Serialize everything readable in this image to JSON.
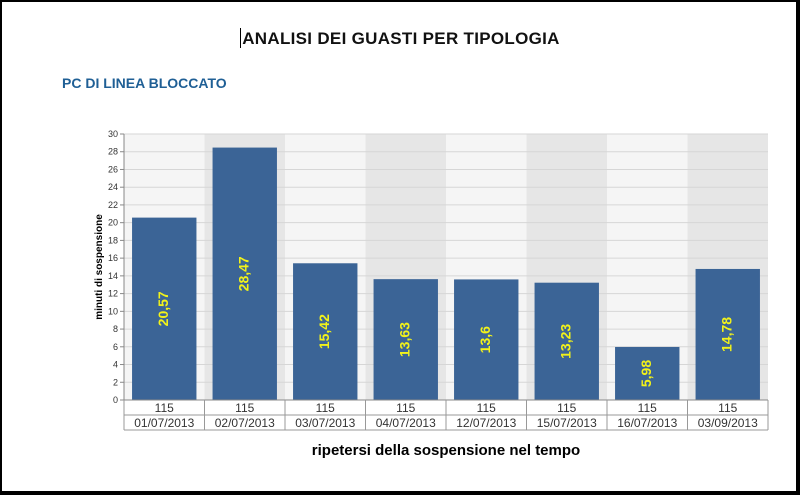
{
  "report": {
    "title": "ANALISI DEI GUASTI PER TIPOLOGIA"
  },
  "section": {
    "title": "PC DI LINEA BLOCCATO"
  },
  "chart_data": {
    "type": "bar",
    "categories": [
      "01/07/2013",
      "02/07/2013",
      "03/07/2013",
      "04/07/2013",
      "12/07/2013",
      "15/07/2013",
      "16/07/2013",
      "03/09/2013"
    ],
    "category_codes": [
      "115",
      "115",
      "115",
      "115",
      "115",
      "115",
      "115",
      "115"
    ],
    "values": [
      20.57,
      28.47,
      15.42,
      13.63,
      13.6,
      13.23,
      5.98,
      14.78
    ],
    "value_labels": [
      "20,57",
      "28,47",
      "15,42",
      "13,63",
      "13,6",
      "13,23",
      "5,98",
      "14,78"
    ],
    "xlabel": "ripetersi della sospensione nel tempo",
    "ylabel": "minuti di sospensione",
    "ylim": [
      0,
      30
    ],
    "yticks": [
      0,
      2,
      4,
      6,
      8,
      10,
      12,
      14,
      16,
      18,
      20,
      22,
      24,
      26,
      28,
      30
    ],
    "grid": true,
    "colors": {
      "bar": "#3b6496",
      "value_label": "#f2f21a",
      "band_alt": "#e6e6e6",
      "band": "#f5f5f5"
    }
  }
}
